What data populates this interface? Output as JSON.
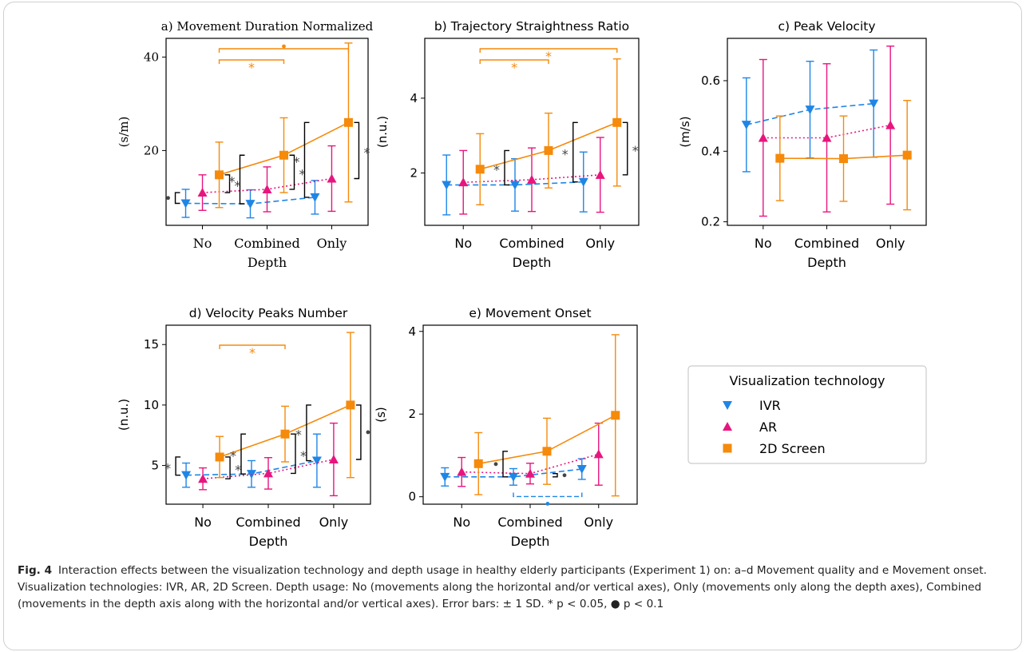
{
  "colors": {
    "IVR": "#1f86e6",
    "AR": "#e8157e",
    "2D Screen": "#f58a0b",
    "black": "#000000",
    "sig_gray": "#444444"
  },
  "legend": {
    "title": "Visualization technology",
    "placement": "right",
    "items": [
      {
        "label": "IVR",
        "marker": "triangle-down"
      },
      {
        "label": "AR",
        "marker": "triangle-up"
      },
      {
        "label": "2D Screen",
        "marker": "square"
      }
    ]
  },
  "caption": {
    "label": "Fig. 4",
    "text": "Interaction effects between the visualization technology and depth usage in healthy elderly participants (Experiment 1) on: a–d Movement quality and e Movement onset. Visualization technologies: IVR, AR, 2D Screen. Depth usage: No (movements along the horizontal and/or vertical axes), Only (movements only along the depth axes), Combined (movements in the depth axis along with the horizontal and/or vertical axes). Error bars: ± 1 SD. * p < 0.05, ● p < 0.1"
  },
  "chart_data": [
    {
      "type": "line",
      "title": "a) Movement Duration Normalized",
      "title_serif": true,
      "xlabel": "Depth",
      "ylabel": "(s/m)",
      "categories": [
        "No",
        "Combined",
        "Only"
      ],
      "ylim": [
        4,
        44
      ],
      "yticks": [
        20,
        40
      ],
      "ytick_labels": [
        "20",
        "40"
      ],
      "series": [
        {
          "name": "IVR",
          "values": [
            8.7,
            8.6,
            10.0
          ],
          "sd": [
            3.0,
            3.0,
            3.6
          ]
        },
        {
          "name": "AR",
          "values": [
            11.0,
            11.7,
            14.0
          ],
          "sd": [
            3.8,
            4.8,
            7.0
          ]
        },
        {
          "name": "2D Screen",
          "values": [
            14.8,
            19.0,
            26.0
          ],
          "sd": [
            7.0,
            8.0,
            17.0
          ]
        }
      ]
    },
    {
      "type": "line",
      "title": "b) Trajectory Straightness Ratio",
      "xlabel": "Depth",
      "ylabel": "(n.u.)",
      "categories": [
        "No",
        "Combined",
        "Only"
      ],
      "ylim": [
        0.6,
        5.6
      ],
      "yticks": [
        2,
        4
      ],
      "ytick_labels": [
        "2",
        "4"
      ],
      "series": [
        {
          "name": "IVR",
          "values": [
            1.68,
            1.68,
            1.76
          ],
          "sd": [
            0.8,
            0.7,
            0.8
          ]
        },
        {
          "name": "AR",
          "values": [
            1.75,
            1.82,
            1.95
          ],
          "sd": [
            0.85,
            0.85,
            1.0
          ]
        },
        {
          "name": "2D Screen",
          "values": [
            2.1,
            2.6,
            3.35
          ],
          "sd": [
            0.95,
            1.0,
            1.7
          ]
        }
      ]
    },
    {
      "type": "line",
      "title": "c) Peak Velocity",
      "xlabel": "Depth",
      "ylabel": "(m/s)",
      "categories": [
        "No",
        "Combined",
        "Only"
      ],
      "ylim": [
        0.19,
        0.72
      ],
      "yticks": [
        0.2,
        0.4,
        0.6
      ],
      "ytick_labels": [
        "0.2",
        "0.4",
        "0.6"
      ],
      "series": [
        {
          "name": "IVR",
          "values": [
            0.475,
            0.518,
            0.535
          ],
          "sd": [
            0.133,
            0.137,
            0.152
          ]
        },
        {
          "name": "AR",
          "values": [
            0.438,
            0.438,
            0.474
          ],
          "sd": [
            0.222,
            0.21,
            0.224
          ]
        },
        {
          "name": "2D Screen",
          "values": [
            0.38,
            0.379,
            0.389
          ],
          "sd": [
            0.12,
            0.121,
            0.155
          ]
        }
      ]
    },
    {
      "type": "line",
      "title": "d) Velocity Peaks Number",
      "xlabel": "Depth",
      "ylabel": "(n.u.)",
      "categories": [
        "No",
        "Combined",
        "Only"
      ],
      "ylim": [
        1.8,
        16.6
      ],
      "yticks": [
        5,
        10,
        15
      ],
      "ytick_labels": [
        "5",
        "10",
        "15"
      ],
      "series": [
        {
          "name": "IVR",
          "values": [
            4.2,
            4.3,
            5.4
          ],
          "sd": [
            1.0,
            1.1,
            2.2
          ]
        },
        {
          "name": "AR",
          "values": [
            3.9,
            4.35,
            5.5
          ],
          "sd": [
            0.9,
            1.3,
            3.0
          ]
        },
        {
          "name": "2D Screen",
          "values": [
            5.7,
            7.6,
            10.0
          ],
          "sd": [
            1.7,
            2.3,
            6.0
          ]
        }
      ]
    },
    {
      "type": "line",
      "title": "e) Movement Onset",
      "xlabel": "Depth",
      "ylabel": "(s)",
      "categories": [
        "No",
        "Combined",
        "Only"
      ],
      "ylim": [
        -0.18,
        4.15
      ],
      "yticks": [
        0,
        2,
        4
      ],
      "ytick_labels": [
        "0",
        "2",
        "4"
      ],
      "series": [
        {
          "name": "IVR",
          "values": [
            0.48,
            0.48,
            0.67
          ],
          "sd": [
            0.22,
            0.2,
            0.25
          ]
        },
        {
          "name": "AR",
          "values": [
            0.6,
            0.56,
            1.03
          ],
          "sd": [
            0.35,
            0.25,
            0.75
          ]
        },
        {
          "name": "2D Screen",
          "values": [
            0.8,
            1.1,
            1.97
          ],
          "sd": [
            0.75,
            0.8,
            1.95
          ]
        }
      ]
    }
  ]
}
